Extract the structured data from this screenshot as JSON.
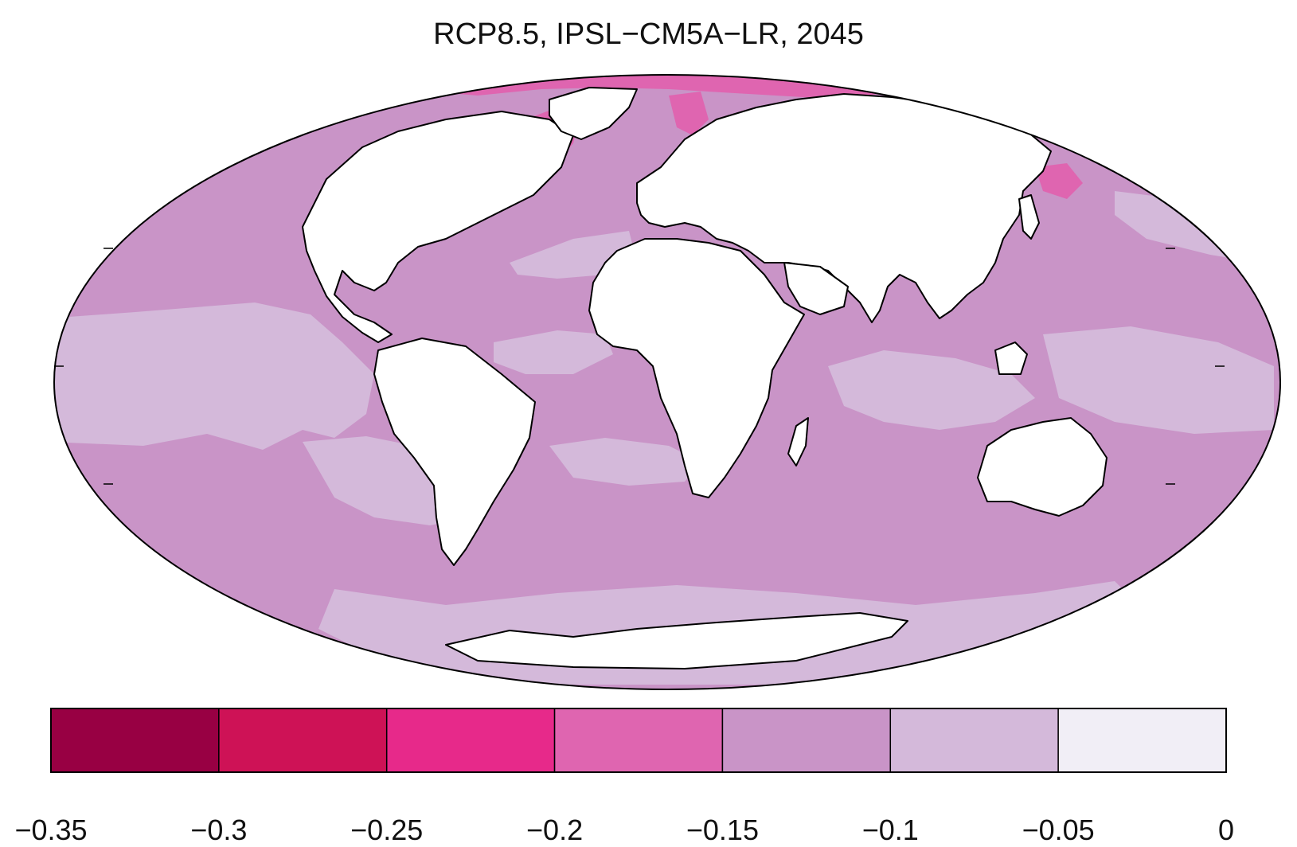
{
  "title": "RCP8.5, IPSL−CM5A−LR, 2045",
  "colorbar": {
    "bins": [
      {
        "from": -0.35,
        "to": -0.3,
        "color": "#980043"
      },
      {
        "from": -0.3,
        "to": -0.25,
        "color": "#ce1256"
      },
      {
        "from": -0.25,
        "to": -0.2,
        "color": "#e7298a"
      },
      {
        "from": -0.2,
        "to": -0.15,
        "color": "#df65b0"
      },
      {
        "from": -0.15,
        "to": -0.1,
        "color": "#c994c7"
      },
      {
        "from": -0.1,
        "to": -0.05,
        "color": "#d4b9da"
      },
      {
        "from": -0.05,
        "to": 0,
        "color": "#f1eef6"
      }
    ],
    "tick_labels": [
      "−0.35",
      "−0.3",
      "−0.25",
      "−0.2",
      "−0.15",
      "−0.1",
      "−0.05",
      "0"
    ]
  },
  "colors": {
    "ocean_base": "#c994c7",
    "ocean_light": "#d4b9da",
    "ocean_strong": "#df65b0",
    "land": "#ffffff",
    "coast": "#000000"
  }
}
